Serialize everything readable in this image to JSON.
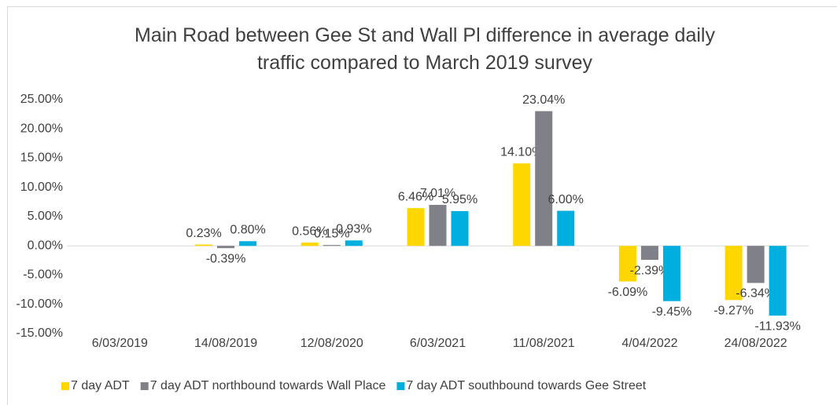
{
  "chart_data": {
    "type": "bar",
    "title": "Main Road between Gee St and Wall Pl difference in average daily traffic compared to March 2019 survey",
    "categories": [
      "6/03/2019",
      "14/08/2019",
      "12/08/2020",
      "6/03/2021",
      "11/08/2021",
      "4/04/2022",
      "24/08/2022"
    ],
    "series": [
      {
        "name": "7 day ADT",
        "color": "#ffd700",
        "values": [
          null,
          0.23,
          0.56,
          6.46,
          14.1,
          -6.09,
          -9.27
        ],
        "value_labels": [
          null,
          "0.23%",
          "0.56%",
          "6.46%",
          "14.10%",
          "-6.09%",
          "-9.27%"
        ]
      },
      {
        "name": "7 day ADT northbound towards Wall Place",
        "color": "#808088",
        "values": [
          null,
          -0.39,
          0.15,
          7.01,
          23.04,
          -2.39,
          -6.34
        ],
        "value_labels": [
          null,
          "-0.39%",
          "0.15%",
          "7.01%",
          "23.04%",
          "-2.39%",
          "-6.34%"
        ]
      },
      {
        "name": "7 day ADT southbound towards Gee Street",
        "color": "#00aee0",
        "values": [
          null,
          0.8,
          0.93,
          5.95,
          6.0,
          -9.45,
          -11.93
        ],
        "value_labels": [
          null,
          "0.80%",
          "0.93%",
          "5.95%",
          "6.00%",
          "-9.45%",
          "-11.93%"
        ]
      }
    ],
    "ylim": [
      -15,
      25
    ],
    "yticks": [
      {
        "value": -15,
        "label": "-15.00%"
      },
      {
        "value": -10,
        "label": "-10.00%"
      },
      {
        "value": -5,
        "label": "-5.00%"
      },
      {
        "value": 0,
        "label": "0.00%"
      },
      {
        "value": 5,
        "label": "5.00%"
      },
      {
        "value": 10,
        "label": "10.00%"
      },
      {
        "value": 15,
        "label": "15.00%"
      },
      {
        "value": 20,
        "label": "20.00%"
      },
      {
        "value": 25,
        "label": "25.00%"
      }
    ],
    "legend": "bottom"
  }
}
